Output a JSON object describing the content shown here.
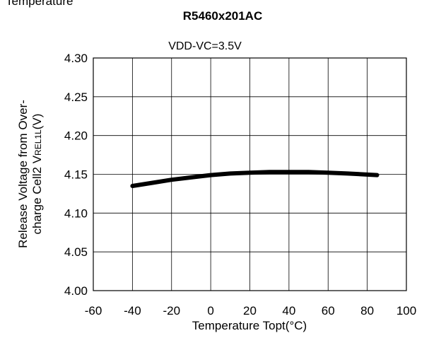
{
  "figure": {
    "cropped_text": "Temperature"
  },
  "chart_data": {
    "type": "line",
    "title": "R5460x201AC",
    "subtitle": "VDD-VC=3.5V",
    "xlabel": "Temperature Topt(°C)",
    "ylabel_line1": "Release Voltage from Over-",
    "ylabel_line2_main": "charge Cell2 V",
    "ylabel_line2_sub": "REL1L",
    "ylabel_line2_end": "(V)",
    "xlim": [
      -60,
      100
    ],
    "ylim": [
      4.0,
      4.3
    ],
    "x_ticks": [
      -60,
      -40,
      -20,
      0,
      20,
      40,
      60,
      80,
      100
    ],
    "x_tick_labels": [
      "-60",
      "-40",
      "-20",
      "0",
      "20",
      "40",
      "60",
      "80",
      "100"
    ],
    "y_ticks": [
      4.0,
      4.05,
      4.1,
      4.15,
      4.2,
      4.25,
      4.3
    ],
    "y_tick_labels": [
      "4.00",
      "4.05",
      "4.10",
      "4.15",
      "4.20",
      "4.25",
      "4.30"
    ],
    "grid": true,
    "series": [
      {
        "color": "#000000",
        "x": [
          -40,
          -30,
          -20,
          -10,
          0,
          10,
          20,
          30,
          40,
          50,
          60,
          70,
          85
        ],
        "y": [
          4.135,
          4.139,
          4.143,
          4.146,
          4.149,
          4.151,
          4.152,
          4.153,
          4.153,
          4.153,
          4.152,
          4.151,
          4.149
        ]
      }
    ]
  }
}
